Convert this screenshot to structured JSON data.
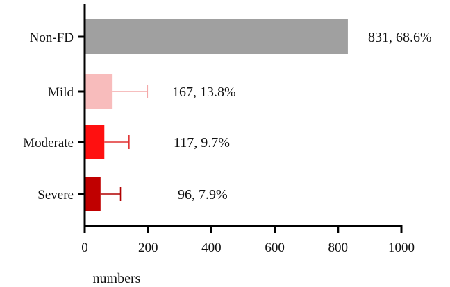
{
  "chart_data": {
    "type": "bar",
    "orientation": "horizontal",
    "title": "",
    "xlabel": "numbers",
    "ylabel": "",
    "xlim": [
      0,
      1000
    ],
    "xticks": [
      0,
      200,
      400,
      600,
      800,
      1000
    ],
    "grid": false,
    "categories": [
      "Non-FD",
      "Mild",
      "Moderate",
      "Severe"
    ],
    "values": [
      831,
      88,
      62,
      50
    ],
    "error_upper": [
      831,
      198,
      140,
      113
    ],
    "labels": [
      "831, 68.6%",
      "167, 13.8%",
      "117, 9.7%",
      "96, 7.9%"
    ],
    "colors": [
      "#a0a0a0",
      "#f8bcbc",
      "#ff1010",
      "#c00000"
    ],
    "error_colors": [
      "#a0a0a0",
      "#f4a8a8",
      "#e03030",
      "#b00000"
    ]
  }
}
